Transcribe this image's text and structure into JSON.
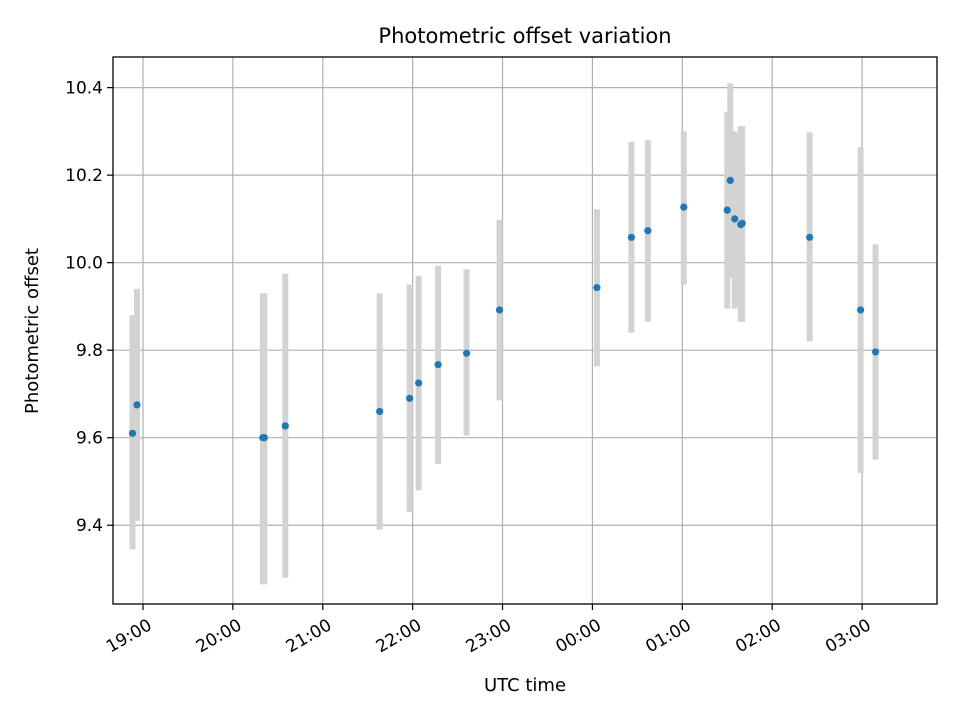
{
  "chart_data": {
    "type": "scatter",
    "title": "Photometric offset variation",
    "xlabel": "UTC time",
    "ylabel": "Photometric offset",
    "x_axis_type": "time",
    "x_range": [
      "18:40",
      "03:50"
    ],
    "y_range": [
      9.22,
      10.47
    ],
    "x_ticks": [
      "19:00",
      "20:00",
      "21:00",
      "22:00",
      "23:00",
      "00:00",
      "01:00",
      "02:00",
      "03:00"
    ],
    "y_ticks": [
      9.4,
      9.6,
      9.8,
      10.0,
      10.2,
      10.4
    ],
    "y_tick_labels": [
      "9.4",
      "9.6",
      "9.8",
      "10.0",
      "10.2",
      "10.4"
    ],
    "grid": true,
    "colors": {
      "points": "#1f77b4",
      "errorbars": "#d3d3d3",
      "grid": "#b0b0b0"
    },
    "points": [
      {
        "time": "18:53",
        "y": 9.61,
        "err_low": 9.345,
        "err_high": 9.88
      },
      {
        "time": "18:56",
        "y": 9.675,
        "err_low": 9.41,
        "err_high": 9.94
      },
      {
        "time": "20:20",
        "y": 9.6,
        "err_low": 9.265,
        "err_high": 9.93
      },
      {
        "time": "20:21",
        "y": 9.6,
        "err_low": 9.265,
        "err_high": 9.93
      },
      {
        "time": "20:35",
        "y": 9.627,
        "err_low": 9.28,
        "err_high": 9.975
      },
      {
        "time": "21:38",
        "y": 9.66,
        "err_low": 9.39,
        "err_high": 9.93
      },
      {
        "time": "21:58",
        "y": 9.69,
        "err_low": 9.43,
        "err_high": 9.95
      },
      {
        "time": "22:04",
        "y": 9.725,
        "err_low": 9.48,
        "err_high": 9.97
      },
      {
        "time": "22:17",
        "y": 9.767,
        "err_low": 9.54,
        "err_high": 9.993
      },
      {
        "time": "22:36",
        "y": 9.793,
        "err_low": 9.605,
        "err_high": 9.985
      },
      {
        "time": "22:58",
        "y": 9.892,
        "err_low": 9.685,
        "err_high": 10.098
      },
      {
        "time": "00:03",
        "y": 9.943,
        "err_low": 9.763,
        "err_high": 10.122
      },
      {
        "time": "00:26",
        "y": 10.058,
        "err_low": 9.84,
        "err_high": 10.276
      },
      {
        "time": "00:37",
        "y": 10.073,
        "err_low": 9.865,
        "err_high": 10.28
      },
      {
        "time": "01:01",
        "y": 10.127,
        "err_low": 9.95,
        "err_high": 10.3
      },
      {
        "time": "01:30",
        "y": 10.12,
        "err_low": 9.895,
        "err_high": 10.345
      },
      {
        "time": "01:32",
        "y": 10.188,
        "err_low": 9.965,
        "err_high": 10.41
      },
      {
        "time": "01:35",
        "y": 10.1,
        "err_low": 9.895,
        "err_high": 10.3
      },
      {
        "time": "01:39",
        "y": 10.087,
        "err_low": 9.865,
        "err_high": 10.312
      },
      {
        "time": "01:40",
        "y": 10.09,
        "err_low": 9.865,
        "err_high": 10.312
      },
      {
        "time": "02:25",
        "y": 10.058,
        "err_low": 9.82,
        "err_high": 10.298
      },
      {
        "time": "02:59",
        "y": 9.892,
        "err_low": 9.52,
        "err_high": 10.264
      },
      {
        "time": "03:09",
        "y": 9.796,
        "err_low": 9.55,
        "err_high": 10.042
      }
    ]
  }
}
